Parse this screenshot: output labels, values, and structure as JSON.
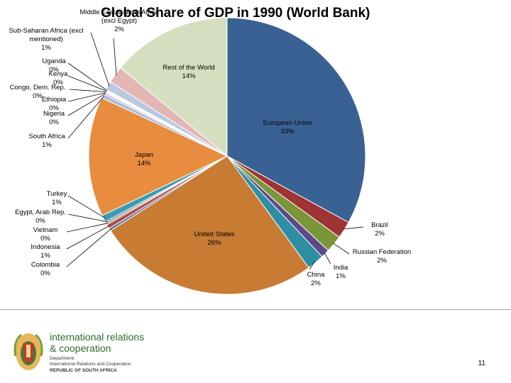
{
  "chart_data": {
    "type": "pie",
    "title": "Global Share of GDP in 1990 (World Bank)",
    "slices": [
      {
        "name": "European Union",
        "value": 33,
        "label_pct": "33%",
        "color": "#3a6193"
      },
      {
        "name": "Brazil",
        "value": 2,
        "label_pct": "2%",
        "color": "#9e3433"
      },
      {
        "name": "Russian Federation",
        "value": 2,
        "label_pct": "2%",
        "color": "#7a9639"
      },
      {
        "name": "India",
        "value": 1,
        "label_pct": "1%",
        "color": "#5e4a8a"
      },
      {
        "name": "China",
        "value": 2,
        "label_pct": "2%",
        "color": "#2e8ea4"
      },
      {
        "name": "United States",
        "value": 26,
        "label_pct": "26%",
        "color": "#c87b32"
      },
      {
        "name": "Colombia",
        "value": 0.3,
        "label_pct": "0%",
        "color": "#4f70a0"
      },
      {
        "name": "Indonesia",
        "value": 0.5,
        "label_pct": "1%",
        "color": "#b04a4a"
      },
      {
        "name": "Vietnam",
        "value": 0.2,
        "label_pct": "0%",
        "color": "#8aa550"
      },
      {
        "name": "Egypt, Arab Rep.",
        "value": 0.2,
        "label_pct": "0%",
        "color": "#7a639e"
      },
      {
        "name": "Turkey",
        "value": 0.8,
        "label_pct": "1%",
        "color": "#3d9bb5"
      },
      {
        "name": "Japan",
        "value": 14,
        "label_pct": "14%",
        "color": "#e88c3f"
      },
      {
        "name": "South Africa",
        "value": 0.5,
        "label_pct": "1%",
        "color": "#a8bcd9"
      },
      {
        "name": "Nigeria",
        "value": 0.2,
        "label_pct": "0%",
        "color": "#d9a8a8"
      },
      {
        "name": "Ethiopia",
        "value": 0.1,
        "label_pct": "0%",
        "color": "#c9d9a8"
      },
      {
        "name": "Congo, Dem. Rep.",
        "value": 0.1,
        "label_pct": "0%",
        "color": "#b8aacc"
      },
      {
        "name": "Kenya",
        "value": 0.1,
        "label_pct": "0%",
        "color": "#a8d4e0"
      },
      {
        "name": "Uganda",
        "value": 0.1,
        "label_pct": "0%",
        "color": "#f4c79a"
      },
      {
        "name": "Sub-Saharan Africa (excl mentioned)",
        "value": 1,
        "label_pct": "1%",
        "color": "#b9c9e0"
      },
      {
        "name": "Middle East & North Africa (excl Egypt)",
        "value": 2,
        "label_pct": "2%",
        "color": "#e3b6b6"
      },
      {
        "name": "Rest of the World",
        "value": 14,
        "label_pct": "14%",
        "color": "#d4dfc0"
      }
    ]
  },
  "footer": {
    "org_line1": "international relations",
    "org_line2": "& cooperation",
    "dept_line1": "Department:",
    "dept_line2": "International Relations and Cooperation",
    "dept_line3": "REPUBLIC OF SOUTH AFRICA",
    "page_number": "11"
  }
}
